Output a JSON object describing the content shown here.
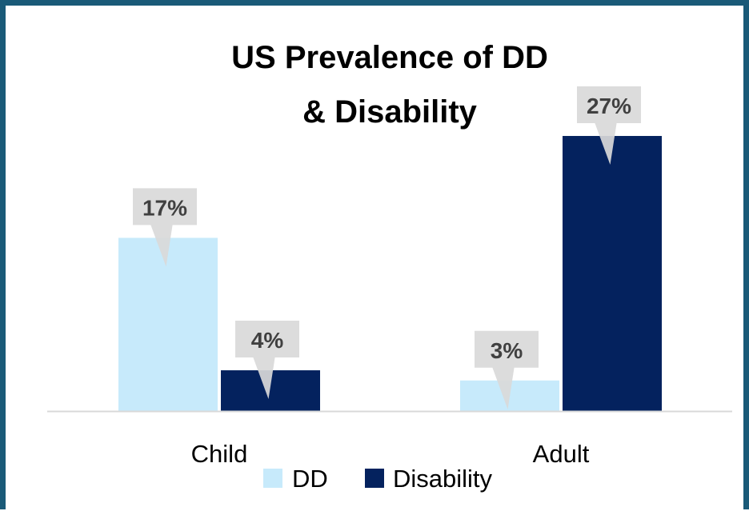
{
  "chart_data": {
    "type": "bar",
    "title": "US Prevalence of DD & Disability",
    "title_lines": [
      "US Prevalence of DD",
      "& Disability"
    ],
    "categories": [
      "Child",
      "Adult"
    ],
    "series": [
      {
        "name": "DD",
        "values": [
          17,
          3
        ],
        "labels": [
          "17%",
          "3%"
        ],
        "color": "#c7eafb"
      },
      {
        "name": "Disability",
        "values": [
          4,
          27
        ],
        "labels": [
          "4%",
          "27%"
        ],
        "color": "#04225e"
      }
    ],
    "ylim": [
      0,
      27
    ],
    "grid": false,
    "legend": "bottom",
    "data_label_style": "callout",
    "callout_color": "#d9d9d9",
    "axis_color": "#d9d9d9"
  }
}
